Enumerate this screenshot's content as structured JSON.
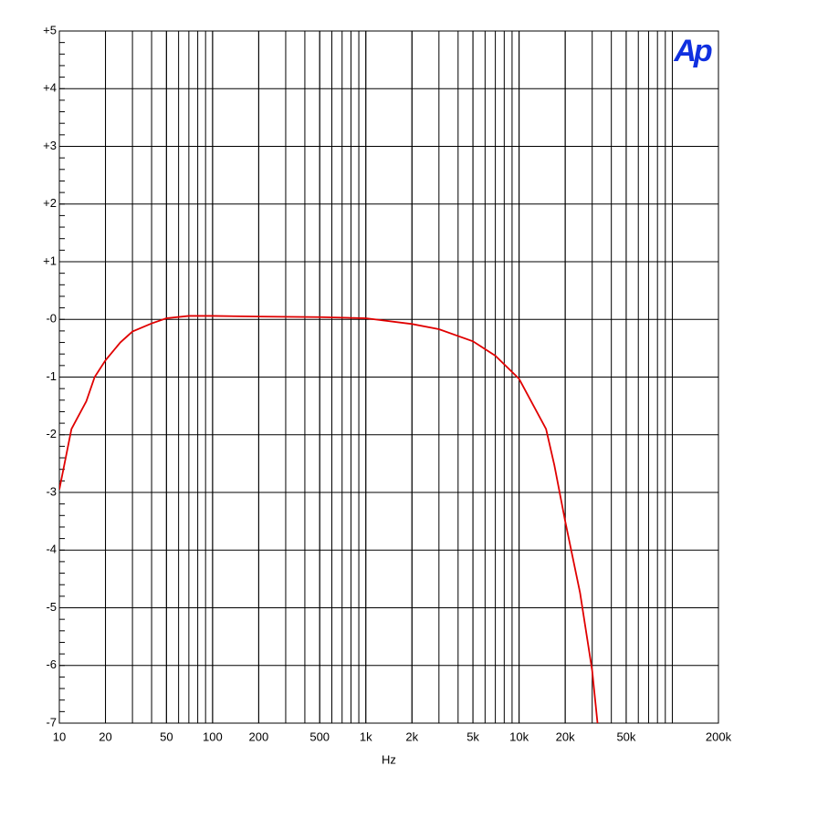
{
  "chart_data": {
    "type": "line",
    "logo": "Ap",
    "xlabel": "Hz",
    "xscale": "log",
    "xlim": [
      10,
      200000
    ],
    "ylim": [
      -7,
      5
    ],
    "xticks": [
      10,
      20,
      50,
      100,
      200,
      500,
      {
        "value": 1000,
        "label": "1k"
      },
      {
        "value": 2000,
        "label": "2k"
      },
      {
        "value": 5000,
        "label": "5k"
      },
      {
        "value": 10000,
        "label": "10k"
      },
      {
        "value": 20000,
        "label": "20k"
      },
      {
        "value": 50000,
        "label": "50k"
      },
      {
        "value": 200000,
        "label": "200k"
      }
    ],
    "yticks": [
      {
        "value": 5,
        "label": "+5"
      },
      {
        "value": 4,
        "label": "+4"
      },
      {
        "value": 3,
        "label": "+3"
      },
      {
        "value": 2,
        "label": "+2"
      },
      {
        "value": 1,
        "label": "+1"
      },
      {
        "value": 0,
        "label": "-0"
      },
      -1,
      -2,
      -3,
      -4,
      -5,
      -6,
      -7
    ],
    "grid": true,
    "minor_grid": true,
    "series": [
      {
        "color": "#e00000",
        "x": [
          10,
          12,
          15,
          17,
          20,
          25,
          30,
          40,
          50,
          70,
          100,
          200,
          500,
          1000,
          2000,
          3000,
          5000,
          7000,
          10000,
          15000,
          17000,
          20000,
          25000,
          30000,
          32500
        ],
        "values": [
          -2.95,
          -1.9,
          -1.42,
          -1.0,
          -0.71,
          -0.4,
          -0.21,
          -0.07,
          0.02,
          0.06,
          0.06,
          0.05,
          0.04,
          0.02,
          -0.08,
          -0.17,
          -0.38,
          -0.63,
          -1.03,
          -1.9,
          -2.53,
          -3.5,
          -4.74,
          -6.09,
          -7
        ]
      }
    ]
  }
}
